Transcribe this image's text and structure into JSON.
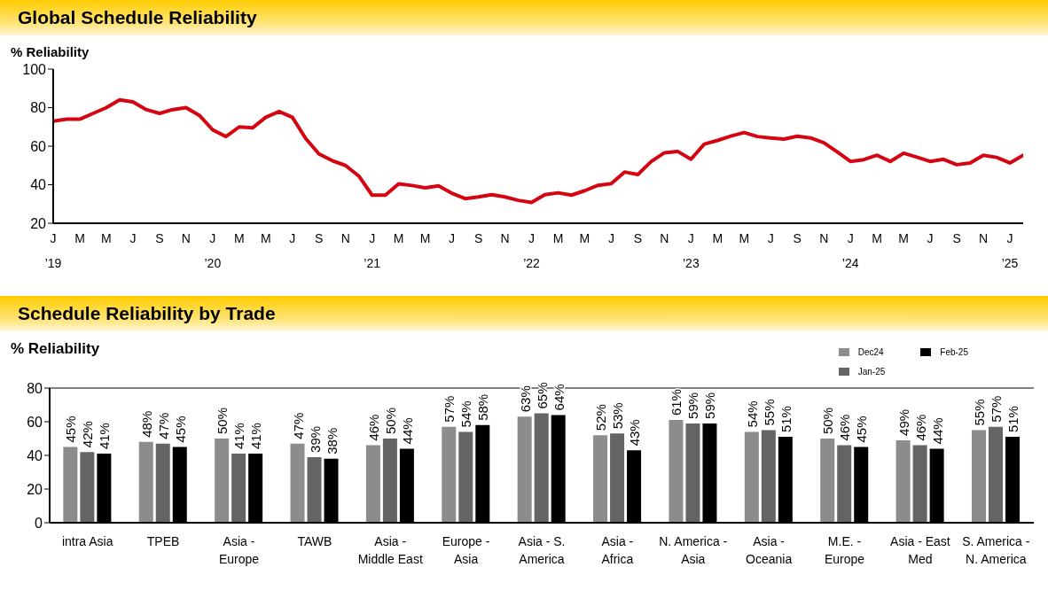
{
  "chart_data": [
    {
      "type": "line",
      "title": "Global Schedule Reliability",
      "ylabel": "% Reliability",
      "x": [
        "2019-01",
        "2019-02",
        "2019-03",
        "2019-04",
        "2019-05",
        "2019-06",
        "2019-07",
        "2019-08",
        "2019-09",
        "2019-10",
        "2019-11",
        "2019-12",
        "2020-01",
        "2020-02",
        "2020-03",
        "2020-04",
        "2020-05",
        "2020-06",
        "2020-07",
        "2020-08",
        "2020-09",
        "2020-10",
        "2020-11",
        "2020-12",
        "2021-01",
        "2021-02",
        "2021-03",
        "2021-04",
        "2021-05",
        "2021-06",
        "2021-07",
        "2021-08",
        "2021-09",
        "2021-10",
        "2021-11",
        "2021-12",
        "2022-01",
        "2022-02",
        "2022-03",
        "2022-04",
        "2022-05",
        "2022-06",
        "2022-07",
        "2022-08",
        "2022-09",
        "2022-10",
        "2022-11",
        "2022-12",
        "2023-01",
        "2023-02",
        "2023-03",
        "2023-04",
        "2023-05",
        "2023-06",
        "2023-07",
        "2023-08",
        "2023-09",
        "2023-10",
        "2023-11",
        "2023-12",
        "2024-01",
        "2024-02",
        "2024-03",
        "2024-04",
        "2024-05",
        "2024-06",
        "2024-07",
        "2024-08",
        "2024-09",
        "2024-10",
        "2024-11",
        "2024-12",
        "2025-01",
        "2025-02"
      ],
      "series": [
        {
          "color": "#d40511",
          "values": [
            73,
            74,
            74,
            77,
            80,
            84,
            83,
            79,
            77,
            79,
            80,
            76,
            68.5,
            65,
            70,
            69.5,
            75,
            78,
            75,
            64,
            56,
            52.5,
            50,
            44.5,
            34.6,
            34.6,
            40.5,
            39.6,
            38.4,
            39.4,
            35.6,
            32.8,
            33.7,
            34.8,
            33.7,
            31.9,
            30.8,
            34.8,
            35.8,
            34.6,
            36.9,
            39.7,
            40.6,
            46.6,
            45.3,
            52,
            56.6,
            57.3,
            53.2,
            61.1,
            63,
            65.2,
            67.1,
            65,
            64.3,
            63.7,
            65.2,
            64.3,
            61.8,
            57.1,
            52.1,
            53,
            55.3,
            52.1,
            56.4,
            54.3,
            52.1,
            53.2,
            50.4,
            51.3,
            55.3,
            54.2,
            51.3,
            55.3
          ]
        }
      ],
      "xlim": [
        "2019-01",
        "2025-02"
      ],
      "xticks": [
        {
          "value": "2019-01",
          "label": "J\n’19"
        },
        {
          "value": "2019-03",
          "label": "M"
        },
        {
          "value": "2019-05",
          "label": "M"
        },
        {
          "value": "2019-07",
          "label": "J"
        },
        {
          "value": "2019-09",
          "label": "S"
        },
        {
          "value": "2019-11",
          "label": "N"
        },
        {
          "value": "2020-01",
          "label": "J\n’20"
        },
        {
          "value": "2020-03",
          "label": "M"
        },
        {
          "value": "2020-05",
          "label": "M"
        },
        {
          "value": "2020-07",
          "label": "J"
        },
        {
          "value": "2020-09",
          "label": "S"
        },
        {
          "value": "2020-11",
          "label": "N"
        },
        {
          "value": "2021-01",
          "label": "J\n’21"
        },
        {
          "value": "2021-03",
          "label": "M"
        },
        {
          "value": "2021-05",
          "label": "M"
        },
        {
          "value": "2021-07",
          "label": "J"
        },
        {
          "value": "2021-09",
          "label": "S"
        },
        {
          "value": "2021-11",
          "label": "N"
        },
        {
          "value": "2022-01",
          "label": "J\n’22"
        },
        {
          "value": "2022-03",
          "label": "M"
        },
        {
          "value": "2022-05",
          "label": "M"
        },
        {
          "value": "2022-07",
          "label": "J"
        },
        {
          "value": "2022-09",
          "label": "S"
        },
        {
          "value": "2022-11",
          "label": "N"
        },
        {
          "value": "2023-01",
          "label": "J\n’23"
        },
        {
          "value": "2023-03",
          "label": "M"
        },
        {
          "value": "2023-05",
          "label": "M"
        },
        {
          "value": "2023-07",
          "label": "J"
        },
        {
          "value": "2023-09",
          "label": "S"
        },
        {
          "value": "2023-11",
          "label": "N"
        },
        {
          "value": "2024-01",
          "label": "J\n’24"
        },
        {
          "value": "2024-03",
          "label": "M"
        },
        {
          "value": "2024-05",
          "label": "M"
        },
        {
          "value": "2024-07",
          "label": "J"
        },
        {
          "value": "2024-09",
          "label": "S"
        },
        {
          "value": "2024-11",
          "label": "N"
        },
        {
          "value": "2025-01",
          "label": "J\n’25"
        }
      ],
      "ylim": [
        20,
        100
      ],
      "yticks": [
        20,
        40,
        60,
        80,
        100
      ],
      "marker": "none",
      "line_style": "solid"
    },
    {
      "type": "bar",
      "title": "Schedule Reliability by Trade",
      "ylabel": "% Reliability",
      "categories": [
        "intra Asia",
        "TPEB",
        "Asia - Europe",
        "TAWB",
        "Asia - Middle East",
        "Europe - Asia",
        "Asia - S. America",
        "Asia - Africa",
        "N. America - Asia",
        "Asia - Oceania",
        "M.E. - Europe",
        "Asia - East Med",
        "S. America - N. America"
      ],
      "series": [
        {
          "name": "Dec24",
          "color": "#8c8c8c",
          "values": [
            45,
            48,
            50,
            47,
            46,
            57,
            63,
            52,
            61,
            54,
            50,
            49,
            55
          ],
          "value_labels": [
            "45%",
            "48%",
            "50%",
            "47%",
            "46%",
            "57%",
            "63%",
            "52%",
            "61%",
            "54%",
            "50%",
            "49%",
            "55%"
          ]
        },
        {
          "name": "Jan-25",
          "color": "#646464",
          "values": [
            42,
            47,
            41,
            39,
            50,
            54,
            65,
            53,
            59,
            55,
            46,
            46,
            57
          ],
          "value_labels": [
            "42%",
            "47%",
            "41%",
            "39%",
            "50%",
            "54%",
            "65%",
            "53%",
            "59%",
            "55%",
            "46%",
            "46%",
            "57%"
          ]
        },
        {
          "name": "Feb-25",
          "color": "#000000",
          "values": [
            41,
            45,
            41,
            38,
            44,
            58,
            64,
            43,
            59,
            51,
            45,
            44,
            51
          ],
          "value_labels": [
            "41%",
            "45%",
            "41%",
            "38%",
            "44%",
            "58%",
            "64%",
            "43%",
            "59%",
            "51%",
            "45%",
            "44%",
            "51%"
          ]
        }
      ],
      "ylim": [
        0,
        80
      ],
      "yticks": [
        0,
        20,
        40,
        60,
        80
      ],
      "legend": "top right",
      "ref_lines": [
        {
          "axis": "y",
          "value": 80,
          "color": "#808080"
        }
      ]
    }
  ]
}
